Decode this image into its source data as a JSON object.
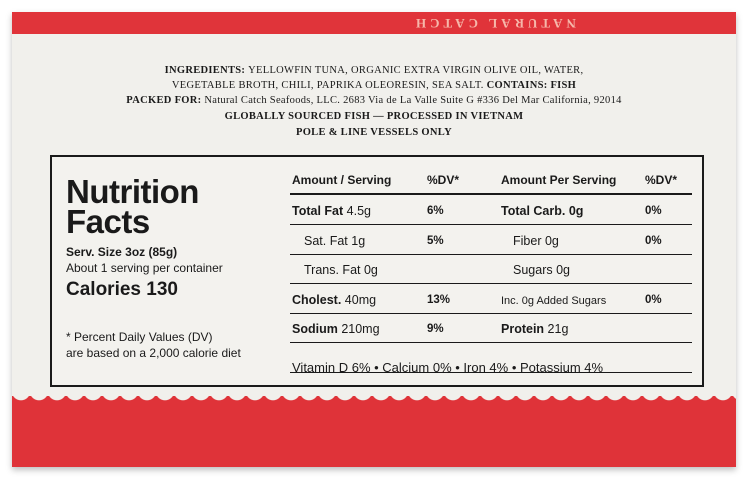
{
  "box_top": "NATURAL CATCH",
  "ingredients": {
    "label": "INGREDIENTS:",
    "line1": "YELLOWFIN TUNA, ORGANIC EXTRA VIRGIN OLIVE OIL, WATER,",
    "line2": "VEGETABLE BROTH, CHILI, PAPRIKA OLEORESIN, SEA SALT.",
    "contains": "CONTAINS: FISH"
  },
  "packed_for": {
    "label": "PACKED FOR:",
    "text": "Natural Catch Seafoods, LLC. 2683 Via de La Valle Suite G #336 Del Mar California, 92014"
  },
  "sourcing": [
    "GLOBALLY SOURCED FISH — PROCESSED IN VIETNAM",
    "POLE & LINE VESSELS ONLY"
  ],
  "nutrition": {
    "title_line1": "Nutrition",
    "title_line2": "Facts",
    "serving_size": "Serv. Size 3oz (85g)",
    "servings": "About 1 serving per container",
    "calories": "Calories 130",
    "footnote_line1": "* Percent Daily Values (DV)",
    "footnote_line2": "are based on a 2,000 calorie diet",
    "headers": [
      "Amount / Serving",
      "%DV*",
      "Amount Per Serving",
      "%DV*"
    ],
    "left_rows": [
      {
        "name": "Total Fat",
        "amount": "4.5g",
        "dv": "6%"
      },
      {
        "name": "Sat. Fat",
        "amount": "1g",
        "dv": "5%"
      },
      {
        "name": "Trans. Fat",
        "amount": "0g"
      },
      {
        "name": "Cholest.",
        "amount": "40mg",
        "dv": "13%"
      },
      {
        "name": "Sodium",
        "amount": "210mg",
        "dv": "9%"
      }
    ],
    "right_rows": [
      {
        "name": "Total Carb.",
        "amount": "0g",
        "dv": "0%"
      },
      {
        "name": "Fiber",
        "amount": "0g",
        "dv": "0%"
      },
      {
        "name": "Sugars",
        "amount": "0g"
      },
      {
        "name": "Inc. 0g Added Sugars",
        "dv": "0%"
      },
      {
        "name": "Protein",
        "amount": "21g"
      }
    ],
    "vitamins": "Vitamin D 6% • Calcium 0% • Iron 4% • Potassium 4%"
  }
}
